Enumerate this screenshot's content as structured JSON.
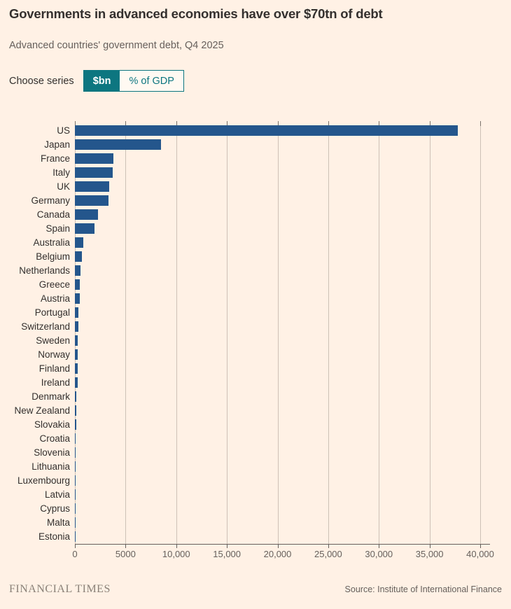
{
  "header": {
    "title": "Governments in advanced economies have over $70tn of debt",
    "subtitle": "Advanced countries' government debt, Q4 2025"
  },
  "controls": {
    "label": "Choose series",
    "options": [
      {
        "label": "$bn",
        "selected": true
      },
      {
        "label": "% of GDP",
        "selected": false
      }
    ]
  },
  "chart_data": {
    "type": "bar",
    "orientation": "horizontal",
    "title": "Governments in advanced economies have over $70tn of debt",
    "subtitle": "Advanced countries' government debt, Q4 2025",
    "unit": "$bn",
    "categories": [
      "US",
      "Japan",
      "France",
      "Italy",
      "UK",
      "Germany",
      "Canada",
      "Spain",
      "Australia",
      "Belgium",
      "Netherlands",
      "Greece",
      "Austria",
      "Portugal",
      "Switzerland",
      "Sweden",
      "Norway",
      "Finland",
      "Ireland",
      "Denmark",
      "New Zealand",
      "Slovakia",
      "Croatia",
      "Slovenia",
      "Lithuania",
      "Luxembourg",
      "Latvia",
      "Cyprus",
      "Malta",
      "Estonia"
    ],
    "values": [
      37800,
      8500,
      3800,
      3700,
      3400,
      3350,
      2250,
      1950,
      850,
      700,
      560,
      500,
      490,
      350,
      320,
      300,
      280,
      260,
      250,
      160,
      130,
      120,
      70,
      50,
      45,
      30,
      25,
      20,
      12,
      10
    ],
    "xlim": [
      0,
      40000
    ],
    "x_ticks": [
      0,
      5000,
      10000,
      15000,
      20000,
      25000,
      30000,
      35000,
      40000
    ],
    "x_tick_labels": [
      "0",
      "5000",
      "10,000",
      "15,000",
      "20,000",
      "25,000",
      "30,000",
      "35,000",
      "40,000"
    ],
    "grid": true,
    "legend": "none",
    "bar_color": "#24568C"
  },
  "colors": {
    "background": "#FFF1E5",
    "accent_teal": "#0D7680",
    "bar_blue": "#24568C",
    "text_dark": "#33302E",
    "text_gray": "#66605C",
    "gridline": "#CDC1B6"
  },
  "footer": {
    "brand": "FINANCIAL TIMES",
    "source": "Source: Institute of International Finance"
  }
}
